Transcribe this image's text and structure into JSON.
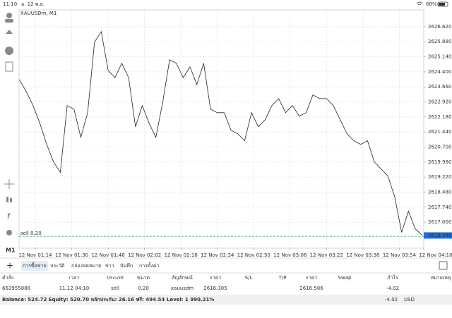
{
  "status_bar": {
    "time": "11:10",
    "date": "อ. 12 พ.ย.",
    "battery": "68%"
  },
  "toolbar": {
    "timeframe": "M1"
  },
  "chart_data": {
    "type": "line",
    "title": "XAUUSDm, M1",
    "color": "#222222",
    "grid": true,
    "x": [
      "12 Nov 01:07",
      "12 Nov 01:10",
      "12 Nov 01:13",
      "12 Nov 01:16",
      "12 Nov 01:19",
      "12 Nov 01:22",
      "12 Nov 01:25",
      "12 Nov 01:28",
      "12 Nov 01:31",
      "12 Nov 01:34",
      "12 Nov 01:37",
      "12 Nov 01:40",
      "12 Nov 01:43",
      "12 Nov 01:46",
      "12 Nov 01:49",
      "12 Nov 01:52",
      "12 Nov 01:55",
      "12 Nov 01:58",
      "12 Nov 02:01",
      "12 Nov 02:04",
      "12 Nov 02:07",
      "12 Nov 02:10",
      "12 Nov 02:13",
      "12 Nov 02:16",
      "12 Nov 02:19",
      "12 Nov 02:22",
      "12 Nov 02:25",
      "12 Nov 02:28",
      "12 Nov 02:31",
      "12 Nov 02:34",
      "12 Nov 02:37",
      "12 Nov 02:40",
      "12 Nov 02:43",
      "12 Nov 02:46",
      "12 Nov 02:49",
      "12 Nov 02:52",
      "12 Nov 02:55",
      "12 Nov 02:58",
      "12 Nov 03:01",
      "12 Nov 03:04",
      "12 Nov 03:07",
      "12 Nov 03:10",
      "12 Nov 03:13",
      "12 Nov 03:16",
      "12 Nov 03:19",
      "12 Nov 03:22",
      "12 Nov 03:25",
      "12 Nov 03:28",
      "12 Nov 03:31",
      "12 Nov 03:34",
      "12 Nov 03:37",
      "12 Nov 03:40",
      "12 Nov 03:43",
      "12 Nov 03:46",
      "12 Nov 03:49",
      "12 Nov 03:52",
      "12 Nov 03:55",
      "12 Nov 03:58",
      "12 Nov 04:01",
      "12 Nov 04:04"
    ],
    "values": [
      2624.02,
      2623.43,
      2622.74,
      2621.87,
      2620.83,
      2619.97,
      2619.45,
      2622.74,
      2622.56,
      2621.18,
      2622.39,
      2625.86,
      2626.38,
      2624.47,
      2624.12,
      2624.82,
      2624.12,
      2621.7,
      2622.74,
      2621.87,
      2621.18,
      2622.91,
      2624.99,
      2624.82,
      2624.12,
      2624.64,
      2623.78,
      2624.82,
      2622.56,
      2622.39,
      2622.39,
      2621.52,
      2621.35,
      2621.01,
      2622.39,
      2621.7,
      2622.04,
      2622.74,
      2623.08,
      2622.39,
      2622.74,
      2622.22,
      2622.39,
      2623.26,
      2623.08,
      2623.08,
      2622.74,
      2622.04,
      2621.35,
      2621.01,
      2620.83,
      2621.01,
      2619.97,
      2619.62,
      2619.27,
      2618.23,
      2616.5,
      2617.54,
      2616.67,
      2616.36
    ],
    "ylim": [
      2615.72,
      2627.45
    ],
    "yticks": [
      {
        "value": 2617.0,
        "label": "2617.000"
      },
      {
        "value": 2617.74,
        "label": "2617.740"
      },
      {
        "value": 2618.48,
        "label": "2618.480"
      },
      {
        "value": 2619.22,
        "label": "2619.220"
      },
      {
        "value": 2619.96,
        "label": "2619.960"
      },
      {
        "value": 2620.7,
        "label": "2620.700"
      },
      {
        "value": 2621.44,
        "label": "2621.440"
      },
      {
        "value": 2622.18,
        "label": "2622.180"
      },
      {
        "value": 2622.92,
        "label": "2622.920"
      },
      {
        "value": 2623.66,
        "label": "2623.660"
      },
      {
        "value": 2624.4,
        "label": "2624.400"
      },
      {
        "value": 2625.14,
        "label": "2625.140"
      },
      {
        "value": 2625.88,
        "label": "2625.880"
      },
      {
        "value": 2626.62,
        "label": "2626.620"
      }
    ],
    "xticks": [
      "12 Nov 01:14",
      "12 Nov 01:30",
      "12 Nov 01:46",
      "12 Nov 02:02",
      "12 Nov 02:18",
      "12 Nov 02:34",
      "12 Nov 02:50",
      "12 Nov 03:06",
      "12 Nov 03:22",
      "12 Nov 03:38",
      "12 Nov 03:54",
      "12 Nov 04:10"
    ],
    "current_price": {
      "value": 2616.346,
      "label": "2616.346"
    },
    "order_line": {
      "value": 2616.305,
      "label": "sell 0.20"
    }
  },
  "tabs": [
    "การซื้อขาย",
    "ประวัติ",
    "กล่องจดหมาย",
    "ข่าว",
    "บันทึก",
    "การตั้งค่า"
  ],
  "table": {
    "columns": [
      "คำสั่ง",
      "เวลา",
      "ประเภท",
      "ขนาด",
      "สัญลักษณ์",
      "ราคา",
      "S/L",
      "T/P",
      "ราคา",
      "Swap",
      "กำไร",
      "หมายเหตุ"
    ],
    "rows": [
      [
        "663955888",
        "11.12 04:10",
        "sell",
        "0.20",
        "xauusdm",
        "2616.305",
        null,
        null,
        "2616.506",
        null,
        "-4.02",
        null
      ]
    ]
  },
  "footer": {
    "summary": "Balance: 524.72 Equity: 520.70 หลักประกัน: 26.16 ฟรี: 494.54 Level: 1 990.21%",
    "profit": "-4.02",
    "currency": "USD"
  }
}
